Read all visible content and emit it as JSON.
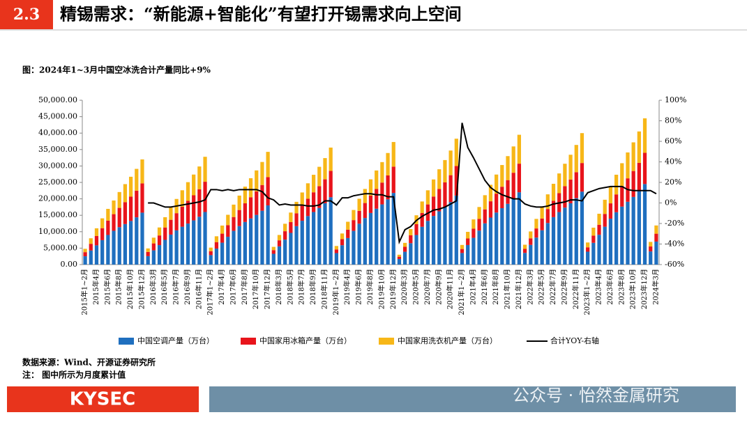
{
  "header": {
    "section": "2.3",
    "title": "精锡需求：“新能源+智能化”有望打开锡需求向上空间"
  },
  "chart_data": {
    "type": "bar",
    "stacked": true,
    "title": "图：2024年1~3月中国空冰洗合计产量同比+9%",
    "categories": [
      "2015年1~2月",
      null,
      "2015年4月",
      null,
      "2015年6月",
      null,
      "2015年8月",
      null,
      "2015年10月",
      null,
      "2015年12月",
      null,
      "2016年3月",
      null,
      "2016年5月",
      null,
      "2016年7月",
      null,
      "2016年9月",
      null,
      "2016年11月",
      null,
      "2017年1~2月",
      null,
      "2017年4月",
      null,
      "2017年6月",
      null,
      "2017年8月",
      null,
      "2017年10月",
      null,
      "2017年12月",
      null,
      "2018年3月",
      null,
      "2018年5月",
      null,
      "2018年7月",
      null,
      "2018年9月",
      null,
      "2018年11月",
      null,
      "2019年1~2月",
      null,
      "2019年4月",
      null,
      "2019年6月",
      null,
      "2019年8月",
      null,
      "2019年10月",
      null,
      "2019年12月",
      null,
      "2020年3月",
      null,
      "2020年5月",
      null,
      "2020年7月",
      null,
      "2020年9月",
      null,
      "2020年11月",
      null,
      "2021年1~2月",
      null,
      "2021年4月",
      null,
      "2021年6月",
      null,
      "2021年8月",
      null,
      "2021年10月",
      null,
      "2021年12月",
      null,
      "2022年3月",
      null,
      "2022年5月",
      null,
      "2022年7月",
      null,
      "2022年9月",
      null,
      "2022年11月",
      null,
      "2023年1~2月",
      null,
      "2023年4月",
      null,
      "2023年6月",
      null,
      "2023年8月",
      null,
      "2023年10月",
      null,
      "2023年12月",
      null,
      "2024年3月"
    ],
    "series": [
      {
        "name": "中国空调产量（万台）",
        "color": "#1f6fbf",
        "values": [
          2530,
          4270,
          5850,
          7430,
          9010,
          10270,
          11380,
          12320,
          13270,
          14380,
          15800,
          2560,
          4320,
          5920,
          7520,
          9120,
          10400,
          11520,
          12480,
          13440,
          14560,
          16000,
          2880,
          4860,
          6660,
          8460,
          10260,
          11700,
          12960,
          14040,
          15120,
          16380,
          18000,
          3280,
          5540,
          7590,
          9640,
          11690,
          13330,
          14760,
          15990,
          17220,
          18660,
          20500,
          3490,
          5890,
          8070,
          10250,
          12430,
          14170,
          15700,
          17000,
          18310,
          19840,
          21800,
          1700,
          3900,
          6500,
          9000,
          11500,
          13300,
          14800,
          16200,
          17500,
          19000,
          21000,
          3520,
          5940,
          8140,
          10340,
          12540,
          14300,
          15840,
          17160,
          18480,
          20020,
          22000,
          3550,
          5990,
          8210,
          10430,
          12650,
          14430,
          15980,
          17320,
          18650,
          20200,
          22200,
          3920,
          6620,
          9070,
          11520,
          13970,
          15930,
          17640,
          19110,
          20580,
          22300,
          24500,
          4000,
          7000
        ]
      },
      {
        "name": "中国家用冰箱产量（万台）",
        "color": "#e8141b",
        "values": [
          1250,
          2050,
          2850,
          3650,
          4360,
          5070,
          5870,
          6680,
          7390,
          8100,
          8900,
          1290,
          2120,
          2940,
          3770,
          4510,
          5240,
          6070,
          6900,
          7640,
          8370,
          9200,
          1200,
          1980,
          2750,
          3530,
          4210,
          4900,
          5680,
          6450,
          7140,
          7830,
          8600,
          1120,
          1840,
          2560,
          3280,
          3920,
          4560,
          5280,
          6000,
          6640,
          7280,
          8000,
          1120,
          1840,
          2560,
          3280,
          3920,
          4560,
          5280,
          6000,
          6640,
          7280,
          8000,
          700,
          1500,
          2400,
          3300,
          4200,
          5000,
          5900,
          6800,
          7500,
          8200,
          9000,
          1220,
          2000,
          2780,
          3570,
          4260,
          4960,
          5740,
          6530,
          7220,
          7920,
          8700,
          1220,
          2000,
          2780,
          3570,
          4260,
          4960,
          5740,
          6530,
          7220,
          7920,
          8700,
          1330,
          2190,
          3040,
          3900,
          4660,
          5420,
          6270,
          7130,
          7890,
          8650,
          9500,
          1500,
          2400
        ]
      },
      {
        "name": "中国家用洗衣机产量（万台）",
        "color": "#f7b718",
        "values": [
          1020,
          1680,
          2340,
          2990,
          3580,
          4160,
          4820,
          5480,
          6060,
          6640,
          7300,
          1060,
          1750,
          2430,
          3120,
          3720,
          4330,
          5020,
          5700,
          6310,
          6920,
          7600,
          1080,
          1770,
          2460,
          3160,
          3770,
          4390,
          5080,
          5780,
          6390,
          7010,
          7700,
          990,
          1630,
          2270,
          2910,
          3480,
          4050,
          4690,
          5330,
          5890,
          6460,
          7100,
          1050,
          1730,
          2400,
          3080,
          3680,
          4280,
          4950,
          5630,
          6230,
          6830,
          7500,
          600,
          1200,
          1900,
          2700,
          3500,
          4300,
          5200,
          6000,
          6800,
          7500,
          8300,
          1230,
          2020,
          2820,
          3610,
          4310,
          5020,
          5810,
          6600,
          7300,
          8010,
          8800,
          1270,
          2090,
          2910,
          3730,
          4460,
          5190,
          6010,
          6830,
          7550,
          8280,
          9100,
          1470,
          2420,
          3360,
          4310,
          5150,
          5990,
          6930,
          7880,
          8720,
          9560,
          10500,
          1400,
          2500
        ]
      },
      {
        "name": "合计YOY-右轴",
        "type": "line",
        "axis": "y2",
        "color": "#000000",
        "values": [
          null,
          null,
          null,
          null,
          null,
          null,
          null,
          null,
          null,
          null,
          null,
          0,
          0,
          -2,
          -4,
          -4,
          -3,
          -2,
          -1,
          0,
          1,
          3,
          13,
          13,
          12,
          13,
          12,
          13,
          13,
          13,
          13,
          11,
          5,
          3,
          -2,
          -1,
          -2,
          -2,
          -2,
          -3,
          -3,
          -2,
          2,
          2,
          -2,
          5,
          5,
          7,
          8,
          9,
          9,
          8,
          8,
          6,
          6,
          -38,
          -26,
          -23,
          -17,
          -13,
          -10,
          -7,
          -6,
          -4,
          -1,
          2,
          78,
          54,
          44,
          33,
          22,
          15,
          11,
          8,
          6,
          4,
          4,
          -1,
          -3,
          -4,
          -4,
          -3,
          -1,
          0,
          1,
          3,
          3,
          2,
          10,
          12,
          14,
          15,
          16,
          16,
          16,
          13,
          12,
          12,
          12,
          12,
          9
        ]
      }
    ],
    "ylim": [
      0,
      50000
    ],
    "yticks": [
      {
        "value": 0,
        "label": "0.00"
      },
      {
        "value": 5000,
        "label": "5,000.00"
      },
      {
        "value": 10000,
        "label": "10,000.00"
      },
      {
        "value": 15000,
        "label": "15,000.00"
      },
      {
        "value": 20000,
        "label": "20,000.00"
      },
      {
        "value": 25000,
        "label": "25,000.00"
      },
      {
        "value": 30000,
        "label": "30,000.00"
      },
      {
        "value": 35000,
        "label": "35,000.00"
      },
      {
        "value": 40000,
        "label": "40,000.00"
      },
      {
        "value": 45000,
        "label": "45,000.00"
      },
      {
        "value": 50000,
        "label": "50,000.00"
      }
    ],
    "y2lim": [
      -60,
      100
    ],
    "y2ticks": [
      {
        "value": -60,
        "label": "-60%"
      },
      {
        "value": -40,
        "label": "-40%"
      },
      {
        "value": -20,
        "label": "-20%"
      },
      {
        "value": 0,
        "label": "0%"
      },
      {
        "value": 20,
        "label": "20%"
      },
      {
        "value": 40,
        "label": "40%"
      },
      {
        "value": 60,
        "label": "60%"
      },
      {
        "value": 80,
        "label": "80%"
      },
      {
        "value": 100,
        "label": "100%"
      }
    ],
    "grid": false,
    "legend": "bottom"
  },
  "footer": {
    "source": "数据来源：Wind、开源证券研究所",
    "note": "注：  图中所示为月度累计值",
    "logo": "KYSEC",
    "watermark": "公众号 · 怡然金属研究"
  }
}
